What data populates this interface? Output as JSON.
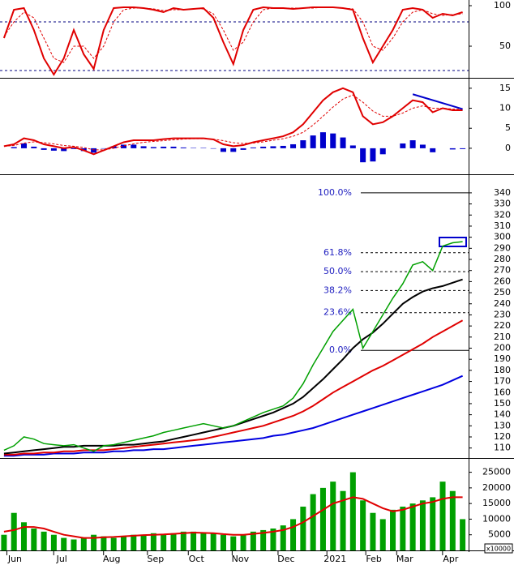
{
  "chart_data": [
    {
      "type": "line",
      "ylim": [
        11,
        107
      ],
      "yticks": [
        50,
        100
      ],
      "levels": [
        80,
        20
      ],
      "series": [
        {
          "style": "line",
          "color": "#e00000",
          "values": [
            60,
            95,
            97,
            70,
            35,
            15,
            35,
            70,
            40,
            22,
            70,
            97,
            98,
            98,
            97,
            95,
            92,
            97,
            95,
            96,
            97,
            85,
            55,
            28,
            70,
            95,
            98,
            97,
            97,
            96,
            97,
            98,
            98,
            98,
            97,
            95,
            60,
            30,
            50,
            70,
            95,
            97,
            95,
            85,
            90,
            88,
            92
          ]
        },
        {
          "style": "dashed",
          "color": "#e00000",
          "values": [
            62,
            80,
            92,
            85,
            60,
            35,
            30,
            50,
            50,
            35,
            50,
            80,
            95,
            97,
            97,
            96,
            94,
            95,
            95,
            96,
            96,
            90,
            70,
            45,
            55,
            80,
            95,
            97,
            97,
            97,
            97,
            97,
            98,
            98,
            97,
            96,
            80,
            50,
            45,
            60,
            80,
            92,
            95,
            90,
            88,
            89,
            90
          ]
        }
      ]
    },
    {
      "type": "macd",
      "ylim": [
        -6.5,
        17.4
      ],
      "yticks": [
        0,
        5,
        10,
        15
      ],
      "series": [
        {
          "style": "bar",
          "color": "#0000cc",
          "values": [
            0,
            0.3,
            1.2,
            0.4,
            -0.4,
            -0.6,
            -0.7,
            -0.2,
            -0.7,
            -1.1,
            -0.1,
            0.5,
            0.9,
            0.9,
            0.5,
            0.3,
            0.4,
            0.4,
            0.2,
            0.1,
            0.1,
            -0.1,
            -0.9,
            -0.9,
            -0.4,
            0.2,
            0.4,
            0.5,
            0.6,
            1,
            2,
            3.2,
            4,
            3.7,
            2.7,
            0.7,
            -3.5,
            -3.3,
            -1.5,
            0,
            1.2,
            2,
            0.9,
            -1,
            0,
            -0.3,
            -0.2
          ]
        },
        {
          "style": "line",
          "color": "#e00000",
          "values": [
            0.5,
            1,
            2.5,
            2,
            1,
            0.5,
            0,
            0.3,
            -0.5,
            -1.5,
            -0.5,
            0.5,
            1.5,
            2,
            2,
            2,
            2.3,
            2.5,
            2.5,
            2.5,
            2.5,
            2.2,
            1,
            0.5,
            0.8,
            1.5,
            2,
            2.5,
            3,
            4,
            6,
            9,
            12,
            14,
            15,
            14,
            8,
            6,
            6.5,
            8,
            10,
            12,
            11.5,
            9,
            10,
            9.5,
            9.5
          ]
        },
        {
          "style": "dashed",
          "color": "#e00000",
          "values": [
            0.5,
            0.7,
            1.3,
            1.6,
            1.4,
            1.1,
            0.7,
            0.5,
            0.2,
            -0.4,
            -0.4,
            0,
            0.6,
            1.1,
            1.5,
            1.7,
            1.9,
            2.1,
            2.3,
            2.4,
            2.4,
            2.3,
            1.9,
            1.4,
            1.2,
            1.3,
            1.6,
            2,
            2.4,
            3,
            4,
            5.8,
            8,
            10.3,
            12.3,
            13.3,
            11.5,
            9.3,
            8,
            8,
            8.8,
            10,
            10.6,
            10,
            10,
            9.8,
            9.7
          ]
        }
      ],
      "trendline": {
        "color": "#0000cc",
        "x": [
          41,
          46
        ],
        "values": [
          13.5,
          9.8
        ]
      }
    },
    {
      "type": "line",
      "ylim": [
        101,
        356
      ],
      "yticks": [
        110,
        120,
        130,
        140,
        150,
        160,
        170,
        180,
        190,
        200,
        210,
        220,
        230,
        240,
        250,
        260,
        270,
        280,
        290,
        300,
        310,
        320,
        330,
        340
      ],
      "fib": [
        {
          "label": "100.0%",
          "value": 340,
          "style": "solid"
        },
        {
          "label": "61.8%",
          "value": 286,
          "style": "dashed"
        },
        {
          "label": "50.0%",
          "value": 269,
          "style": "dashed"
        },
        {
          "label": "38.2%",
          "value": 252,
          "style": "dashed"
        },
        {
          "label": "23.6%",
          "value": 232,
          "style": "dashed"
        },
        {
          "label": "0.0%",
          "value": 198,
          "style": "solid"
        }
      ],
      "series": [
        {
          "style": "line",
          "color": "#0000e0",
          "values": [
            103,
            103,
            104,
            104,
            104,
            105,
            105,
            105,
            106,
            106,
            106,
            107,
            107,
            108,
            108,
            109,
            109,
            110,
            111,
            112,
            113,
            114,
            115,
            116,
            117,
            118,
            119,
            121,
            122,
            124,
            126,
            128,
            131,
            134,
            137,
            140,
            143,
            146,
            149,
            152,
            155,
            158,
            161,
            164,
            167,
            171,
            175
          ]
        },
        {
          "style": "line",
          "color": "#e00000",
          "values": [
            104,
            104,
            105,
            105,
            106,
            106,
            107,
            107,
            108,
            108,
            108,
            109,
            110,
            111,
            112,
            113,
            114,
            115,
            116,
            117,
            118,
            120,
            122,
            124,
            126,
            128,
            130,
            133,
            136,
            139,
            143,
            148,
            154,
            160,
            165,
            170,
            175,
            180,
            184,
            189,
            194,
            199,
            204,
            210,
            215,
            220,
            225
          ]
        },
        {
          "style": "line",
          "color": "#000000",
          "values": [
            105,
            106,
            107,
            108,
            109,
            110,
            111,
            111,
            112,
            112,
            112,
            112,
            113,
            113,
            114,
            115,
            116,
            118,
            120,
            122,
            124,
            126,
            128,
            130,
            133,
            136,
            139,
            142,
            146,
            150,
            156,
            164,
            172,
            181,
            190,
            200,
            208,
            214,
            222,
            231,
            240,
            246,
            251,
            254,
            256,
            259,
            262
          ]
        },
        {
          "style": "thin",
          "color": "#00a000",
          "values": [
            108,
            112,
            120,
            118,
            114,
            113,
            112,
            113,
            110,
            107,
            112,
            113,
            115,
            117,
            119,
            121,
            124,
            126,
            128,
            130,
            132,
            130,
            128,
            130,
            134,
            138,
            142,
            145,
            148,
            155,
            168,
            185,
            200,
            215,
            225,
            235,
            200,
            215,
            230,
            245,
            258,
            275,
            278,
            270,
            292,
            295,
            296
          ]
        }
      ]
    },
    {
      "type": "bar",
      "ylim": [
        0,
        29300
      ],
      "yticks": [
        5000,
        10000,
        15000,
        20000,
        25000
      ],
      "unit_label": "x10000",
      "xlim": [
        -0.4,
        46.6
      ],
      "xticks": [
        {
          "value": 1.1,
          "label": "Jun"
        },
        {
          "value": 5.8,
          "label": "Jul"
        },
        {
          "value": 10.8,
          "label": "Aug"
        },
        {
          "value": 15.2,
          "label": "Sep"
        },
        {
          "value": 19.3,
          "label": "Oct"
        },
        {
          "value": 23.7,
          "label": "Nov"
        },
        {
          "value": 28.3,
          "label": "Dec"
        },
        {
          "value": 33.2,
          "label": "2021"
        },
        {
          "value": 37.1,
          "label": "Feb"
        },
        {
          "value": 40.2,
          "label": "Mar"
        },
        {
          "value": 44.8,
          "label": "Apr"
        }
      ],
      "series": [
        {
          "style": "bar",
          "color": "#00a000",
          "values": [
            5000,
            12000,
            9000,
            7000,
            6000,
            5000,
            4000,
            3500,
            4000,
            5000,
            4500,
            4000,
            4500,
            5000,
            5000,
            5500,
            5000,
            5500,
            6000,
            6000,
            5500,
            5500,
            5000,
            4500,
            5000,
            6000,
            6500,
            7000,
            8000,
            10000,
            14000,
            18000,
            20000,
            22000,
            19000,
            25000,
            16000,
            12000,
            10000,
            13000,
            14000,
            15000,
            16000,
            17000,
            22000,
            19000,
            10000
          ]
        },
        {
          "style": "line",
          "color": "#e00000",
          "values": [
            6000,
            6500,
            7500,
            7500,
            7000,
            6000,
            5000,
            4500,
            4000,
            4000,
            4200,
            4300,
            4500,
            4700,
            4900,
            5000,
            5100,
            5300,
            5500,
            5700,
            5600,
            5500,
            5200,
            5000,
            5000,
            5300,
            5600,
            6000,
            6500,
            7500,
            9000,
            11000,
            13000,
            15000,
            16000,
            17000,
            16500,
            15000,
            13500,
            12500,
            13000,
            14000,
            15000,
            15500,
            16500,
            17000,
            17000
          ]
        }
      ]
    }
  ]
}
